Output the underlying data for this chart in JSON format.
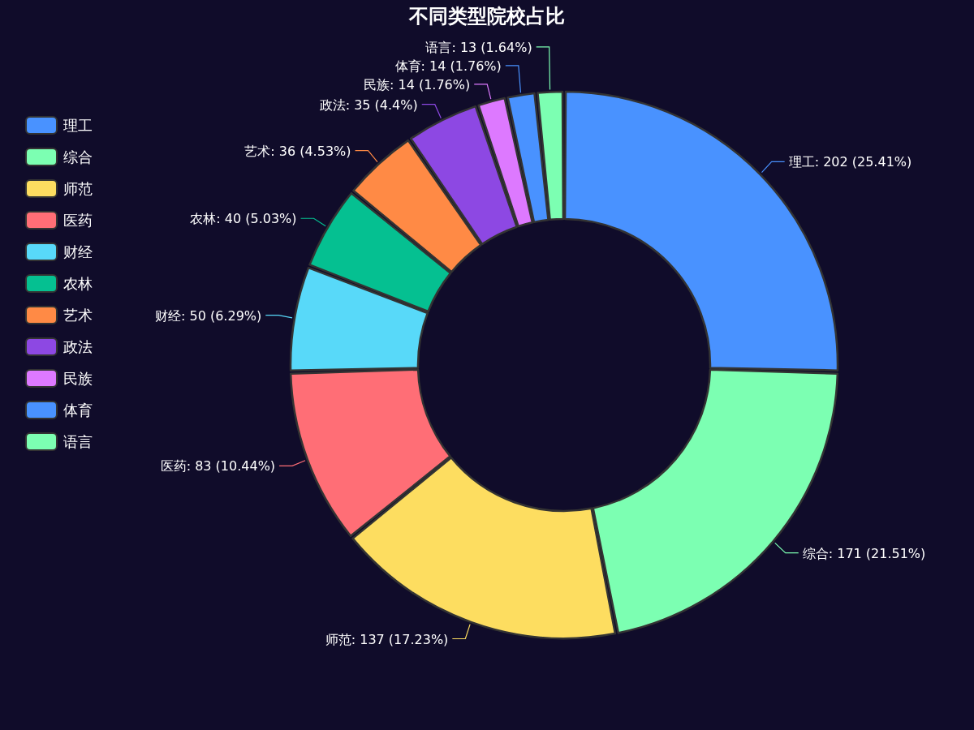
{
  "chart_data": {
    "type": "donut",
    "title": "不同类型院校占比",
    "categories": [
      "理工",
      "综合",
      "师范",
      "医药",
      "财经",
      "农林",
      "艺术",
      "政法",
      "民族",
      "体育",
      "语言"
    ],
    "values": [
      202,
      171,
      137,
      83,
      50,
      40,
      36,
      35,
      14,
      14,
      13
    ],
    "colors": [
      "#4992ff",
      "#7cffb2",
      "#fddd60",
      "#ff6e76",
      "#58d9f9",
      "#05c091",
      "#ff8a45",
      "#8d48e3",
      "#dd79ff",
      "#4992ff",
      "#7cffb2"
    ],
    "value_labels": [
      "理工: 202 (25.41%)",
      "综合: 171 (21.51%)",
      "师范: 137 (17.23%)",
      "医药: 83 (10.44%)",
      "财经: 50 (6.29%)",
      "农林: 40 (5.03%)",
      "艺术: 36 (4.53%)",
      "政法: 35 (4.4%)",
      "民族: 14 (1.76%)",
      "体育: 14 (1.76%)",
      "语言: 13 (1.64%)"
    ],
    "legend": "left"
  }
}
